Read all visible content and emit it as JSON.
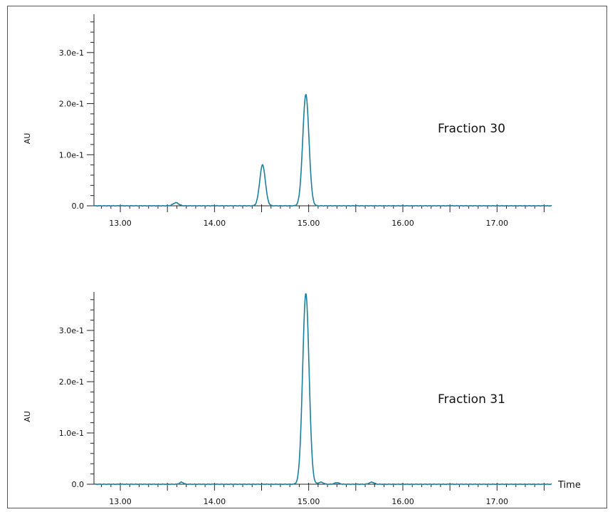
{
  "colors": {
    "trace": "#1a7f9c",
    "axis": "#222222"
  },
  "chart_data": [
    {
      "type": "line",
      "name": "chromatogram-1",
      "annotation": "Fraction 30",
      "ylabel": "AU",
      "xlabel": "",
      "xlim": [
        12.72,
        17.58
      ],
      "ylim": [
        0.0,
        0.375
      ],
      "xticks": [
        "13.00",
        "14.00",
        "15.00",
        "16.00",
        "17.00"
      ],
      "yticks": [
        "0.0",
        "1.0e-1",
        "2.0e-1",
        "3.0e-1"
      ],
      "peaks": [
        {
          "rt": 13.59,
          "height": 0.006,
          "width": 0.03
        },
        {
          "rt": 14.51,
          "height": 0.08,
          "width": 0.03
        },
        {
          "rt": 14.97,
          "height": 0.218,
          "width": 0.033
        }
      ]
    },
    {
      "type": "line",
      "name": "chromatogram-2",
      "annotation": "Fraction 31",
      "ylabel": "AU",
      "xlabel": "Time",
      "xlim": [
        12.72,
        17.58
      ],
      "ylim": [
        0.0,
        0.375
      ],
      "xticks": [
        "13.00",
        "14.00",
        "15.00",
        "16.00",
        "17.00"
      ],
      "yticks": [
        "0.0",
        "1.0e-1",
        "2.0e-1",
        "3.0e-1"
      ],
      "peaks": [
        {
          "rt": 13.65,
          "height": 0.004,
          "width": 0.02
        },
        {
          "rt": 14.97,
          "height": 0.372,
          "width": 0.034
        },
        {
          "rt": 15.13,
          "height": 0.004,
          "width": 0.025
        },
        {
          "rt": 15.3,
          "height": 0.003,
          "width": 0.025
        },
        {
          "rt": 15.67,
          "height": 0.004,
          "width": 0.025
        }
      ]
    }
  ]
}
